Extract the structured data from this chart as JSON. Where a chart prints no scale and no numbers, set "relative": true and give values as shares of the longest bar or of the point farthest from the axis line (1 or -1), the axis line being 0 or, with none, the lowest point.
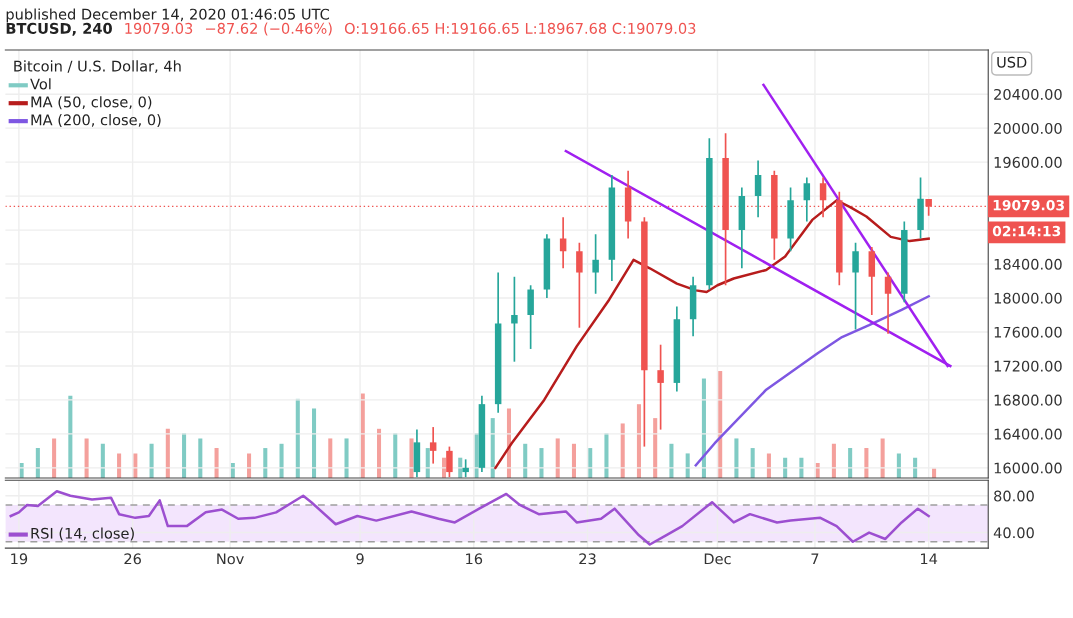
{
  "chart_data": [
    {
      "type": "bar",
      "relative": true,
      "legend": "top left",
      "tick_labels": false,
      "grid": "x",
      "xlim": [
        "2020-10-18T04:00",
        "2020-12-17T16:00"
      ],
      "xticks": [
        "2020-10-19",
        "2020-10-26",
        "2020-11-01",
        "2020-11-09",
        "2020-11-16",
        "2020-11-23",
        "2020-12-01",
        "2020-12-07",
        "2020-12-14"
      ],
      "x": [
        "2020-10-19T04:00",
        "2020-10-20T04:00",
        "2020-10-21T04:00",
        "2020-10-22T04:00",
        "2020-10-23T04:00",
        "2020-10-24T04:00",
        "2020-10-25T04:00",
        "2020-10-26T04:00",
        "2020-10-27T04:00",
        "2020-10-28T04:00",
        "2020-10-29T04:00",
        "2020-10-30T04:00",
        "2020-10-31T04:00",
        "2020-11-01T04:00",
        "2020-11-02T04:00",
        "2020-11-03T04:00",
        "2020-11-04T04:00",
        "2020-11-05T04:00",
        "2020-11-06T04:00",
        "2020-11-07T04:00",
        "2020-11-08T04:00",
        "2020-11-09T04:00",
        "2020-11-10T04:00",
        "2020-11-11T04:00",
        "2020-11-12T04:00",
        "2020-11-13T04:00",
        "2020-11-14T04:00",
        "2020-11-15T04:00",
        "2020-11-16T04:00",
        "2020-11-17T04:00",
        "2020-11-18T04:00",
        "2020-11-19T04:00",
        "2020-11-20T04:00",
        "2020-11-21T04:00",
        "2020-11-22T04:00",
        "2020-11-23T04:00",
        "2020-11-24T04:00",
        "2020-11-25T04:00",
        "2020-11-26T04:00",
        "2020-11-27T04:00",
        "2020-11-28T04:00",
        "2020-11-29T04:00",
        "2020-11-30T04:00",
        "2020-12-01T04:00",
        "2020-12-02T04:00",
        "2020-12-03T04:00",
        "2020-12-04T04:00",
        "2020-12-05T04:00",
        "2020-12-06T04:00",
        "2020-12-07T04:00",
        "2020-12-08T04:00",
        "2020-12-09T04:00",
        "2020-12-10T04:00",
        "2020-12-11T04:00",
        "2020-12-12T04:00",
        "2020-12-13T04:00",
        "2020-12-14T08:00"
      ],
      "series": [
        {
          "name": "Vol",
          "color": "#80cbc4",
          "values": [
            0.14,
            0.28,
            0.37,
            0.77,
            0.37,
            0.32,
            0.23,
            0.23,
            0.32,
            0.46,
            0.42,
            0.37,
            0.28,
            0.14,
            0.23,
            0.28,
            0.32,
            0.74,
            0.65,
            0.37,
            0.37,
            0.79,
            0.46,
            0.42,
            0.37,
            0.28,
            0.19,
            0.19,
            0.42,
            0.56,
            0.65,
            0.32,
            0.28,
            0.37,
            0.32,
            0.28,
            0.42,
            0.51,
            0.69,
            0.56,
            0.32,
            0.23,
            0.93,
            1,
            0.37,
            0.28,
            0.23,
            0.19,
            0.19,
            0.14,
            0.32,
            0.28,
            0.28,
            0.37,
            0.23,
            0.19,
            0.09
          ],
          "colors": [
            "#80cbc4",
            "#80cbc4",
            "#f4a09c",
            "#80cbc4",
            "#f4a09c",
            "#80cbc4",
            "#f4a09c",
            "#f4a09c",
            "#80cbc4",
            "#f4a09c",
            "#80cbc4",
            "#80cbc4",
            "#f4a09c",
            "#80cbc4",
            "#f4a09c",
            "#80cbc4",
            "#80cbc4",
            "#80cbc4",
            "#80cbc4",
            "#f4a09c",
            "#80cbc4",
            "#f4a09c",
            "#f4a09c",
            "#80cbc4",
            "#f4a09c",
            "#80cbc4",
            "#f4a09c",
            "#80cbc4",
            "#80cbc4",
            "#80cbc4",
            "#f4a09c",
            "#80cbc4",
            "#80cbc4",
            "#f4a09c",
            "#f4a09c",
            "#80cbc4",
            "#80cbc4",
            "#f4a09c",
            "#f4a09c",
            "#f4a09c",
            "#80cbc4",
            "#80cbc4",
            "#80cbc4",
            "#f4a09c",
            "#80cbc4",
            "#80cbc4",
            "#f4a09c",
            "#80cbc4",
            "#80cbc4",
            "#f4a09c",
            "#f4a09c",
            "#80cbc4",
            "#f4a09c",
            "#f4a09c",
            "#80cbc4",
            "#80cbc4",
            "#f4a09c"
          ]
        }
      ]
    },
    {
      "type": "candlestick",
      "title": "Bitcoin / U.S. Dollar, 4h",
      "x": [
        "2020-11-12T12:00",
        "2020-11-13T12:00",
        "2020-11-14T12:00",
        "2020-11-15T12:00",
        "2020-11-16T12:00",
        "2020-11-17T12:00",
        "2020-11-18T12:00",
        "2020-11-19T12:00",
        "2020-11-20T12:00",
        "2020-11-21T12:00",
        "2020-11-22T12:00",
        "2020-11-23T12:00",
        "2020-11-24T12:00",
        "2020-11-25T12:00",
        "2020-11-26T12:00",
        "2020-11-27T12:00",
        "2020-11-28T12:00",
        "2020-11-29T12:00",
        "2020-11-30T12:00",
        "2020-12-01T12:00",
        "2020-12-02T12:00",
        "2020-12-03T12:00",
        "2020-12-04T12:00",
        "2020-12-05T12:00",
        "2020-12-06T12:00",
        "2020-12-07T12:00",
        "2020-12-08T12:00",
        "2020-12-09T12:00",
        "2020-12-10T12:00",
        "2020-12-11T12:00",
        "2020-12-12T12:00",
        "2020-12-13T12:00",
        "2020-12-14T00:00"
      ],
      "ohlc": [
        [
          15950,
          16450,
          15890,
          16300
        ],
        [
          16300,
          16480,
          16050,
          16200
        ],
        [
          16200,
          16250,
          15890,
          15950
        ],
        [
          15950,
          16100,
          15890,
          16000
        ],
        [
          16000,
          16850,
          15950,
          16750
        ],
        [
          16750,
          18300,
          16650,
          17700
        ],
        [
          17700,
          18250,
          17250,
          17800
        ],
        [
          17800,
          18150,
          17400,
          18100
        ],
        [
          18100,
          18750,
          18000,
          18700
        ],
        [
          18700,
          18950,
          18350,
          18550
        ],
        [
          18550,
          18650,
          17650,
          18300
        ],
        [
          18300,
          18750,
          18050,
          18450
        ],
        [
          18450,
          19450,
          18200,
          19300
        ],
        [
          19300,
          19500,
          18700,
          18900
        ],
        [
          18900,
          18950,
          16250,
          17150
        ],
        [
          17150,
          17450,
          16450,
          17000
        ],
        [
          17000,
          17900,
          16900,
          17750
        ],
        [
          17750,
          18250,
          17550,
          18150
        ],
        [
          18150,
          19880,
          18100,
          19650
        ],
        [
          19650,
          19940,
          18150,
          18800
        ],
        [
          18800,
          19300,
          18350,
          19200
        ],
        [
          19200,
          19620,
          18950,
          19450
        ],
        [
          19450,
          19500,
          18450,
          18700
        ],
        [
          18700,
          19300,
          18550,
          19150
        ],
        [
          19150,
          19420,
          18900,
          19350
        ],
        [
          19350,
          19420,
          18950,
          19150
        ],
        [
          19150,
          19250,
          18150,
          18300
        ],
        [
          18300,
          18650,
          17630,
          18550
        ],
        [
          18550,
          18600,
          17800,
          18250
        ],
        [
          18250,
          18300,
          17580,
          18050
        ],
        [
          18050,
          18900,
          17950,
          18800
        ],
        [
          18800,
          19420,
          18700,
          19170
        ],
        [
          19166.65,
          19166.65,
          18967.68,
          19079.03
        ]
      ],
      "colors": [
        "#26a69a",
        "#ef5350",
        "#ef5350",
        "#26a69a",
        "#26a69a",
        "#26a69a",
        "#26a69a",
        "#26a69a",
        "#26a69a",
        "#ef5350",
        "#ef5350",
        "#26a69a",
        "#26a69a",
        "#ef5350",
        "#ef5350",
        "#ef5350",
        "#26a69a",
        "#26a69a",
        "#26a69a",
        "#ef5350",
        "#26a69a",
        "#26a69a",
        "#ef5350",
        "#26a69a",
        "#26a69a",
        "#ef5350",
        "#ef5350",
        "#26a69a",
        "#ef5350",
        "#ef5350",
        "#26a69a",
        "#26a69a",
        "#ef5350"
      ],
      "series": [
        {
          "name": "MA (50, close, 0)",
          "type": "line",
          "color": "#b71c1c",
          "x": [
            "2020-11-17T08:00",
            "2020-11-18T08:00",
            "2020-11-20T08:00",
            "2020-11-22T08:00",
            "2020-11-24T08:00",
            "2020-11-25T20:00",
            "2020-11-26T20:00",
            "2020-11-28T12:00",
            "2020-11-29T16:00",
            "2020-11-30T08:00",
            "2020-12-01T00:00",
            "2020-12-02T00:00",
            "2020-12-04T00:00",
            "2020-12-05T04:00",
            "2020-12-06T20:00",
            "2020-12-08T08:00",
            "2020-12-09T04:00",
            "2020-12-10T04:00",
            "2020-12-11T16:00",
            "2020-12-12T20:00",
            "2020-12-14T00:00"
          ],
          "values": [
            16000,
            16290,
            16800,
            17430,
            17980,
            18450,
            18350,
            18170,
            18090,
            18070,
            18150,
            18230,
            18330,
            18490,
            18920,
            19150,
            19070,
            18960,
            18720,
            18670,
            18700
          ]
        },
        {
          "name": "MA (200, close, 0)",
          "type": "line",
          "color": "#7e57e2",
          "x": [
            "2020-11-29T16:00",
            "2020-11-30T20:00",
            "2020-12-04T00:00",
            "2020-12-07T04:00",
            "2020-12-08T16:00",
            "2020-12-10T08:00",
            "2020-12-12T08:00",
            "2020-12-14T00:00"
          ],
          "values": [
            16030,
            16290,
            16920,
            17350,
            17540,
            17680,
            17860,
            18020
          ]
        },
        {
          "type": "line",
          "color": "#a020f0",
          "x": [
            "2020-11-21T16:00",
            "2020-12-15T08:00"
          ],
          "values": [
            19730,
            17200
          ]
        },
        {
          "type": "line",
          "color": "#a020f0",
          "x": [
            "2020-12-03T20:00",
            "2020-12-15T04:00"
          ],
          "values": [
            20510,
            17200
          ]
        }
      ],
      "xlim": [
        "2020-10-18T04:00",
        "2020-12-17T16:00"
      ],
      "ylim": [
        15880,
        20920
      ],
      "yticks": [
        {
          "value": 16000,
          "label": "16000.00"
        },
        {
          "value": 16400,
          "label": "16400.00"
        },
        {
          "value": 16800,
          "label": "16800.00"
        },
        {
          "value": 17200,
          "label": "17200.00"
        },
        {
          "value": 17600,
          "label": "17600.00"
        },
        {
          "value": 18000,
          "label": "18000.00"
        },
        {
          "value": 18400,
          "label": "18400.00"
        },
        {
          "value": 18800,
          "label": null
        },
        {
          "value": 19200,
          "label": null
        },
        {
          "value": 19600,
          "label": "19600.00"
        },
        {
          "value": 20000,
          "label": "20000.00"
        },
        {
          "value": 20400,
          "label": "20400.00"
        }
      ],
      "xticks": [
        "2020-10-19",
        "2020-10-26",
        "2020-11-01",
        "2020-11-09",
        "2020-11-16",
        "2020-11-23",
        "2020-12-01",
        "2020-12-07",
        "2020-12-14"
      ],
      "tick_labels": "y",
      "grid": "y",
      "legend": "top left",
      "ref_lines": [
        {
          "axis": "y",
          "value": 19079.03,
          "label": "19079.03",
          "color": "#ef5350",
          "line_style": "dotted"
        }
      ],
      "annotations": [
        "published December 14, 2020 01:46:05 UTC",
        "BTCUSD, 240",
        "19079.03",
        "−87.62 (−0.46%)",
        "O:19166.65 H:19166.65 L:18967.68 C:19079.03",
        "USD",
        "02:14:13"
      ]
    },
    {
      "type": "line",
      "xlim": [
        "2020-10-18T04:00",
        "2020-12-17T16:00"
      ],
      "ylim": [
        23,
        97
      ],
      "yticks": [
        {
          "value": 40,
          "label": "40.00"
        },
        {
          "value": 80,
          "label": "80.00"
        }
      ],
      "xticks": [
        {
          "value": "2020-10-19",
          "label": "19"
        },
        {
          "value": "2020-10-26",
          "label": "26"
        },
        {
          "value": "2020-11-01",
          "label": "Nov"
        },
        {
          "value": "2020-11-09",
          "label": "9"
        },
        {
          "value": "2020-11-16",
          "label": "16"
        },
        {
          "value": "2020-11-23",
          "label": "23"
        },
        {
          "value": "2020-12-01",
          "label": "Dec"
        },
        {
          "value": "2020-12-07",
          "label": "7"
        },
        {
          "value": "2020-12-14",
          "label": "14"
        }
      ],
      "grid": true,
      "legend": "bottom left",
      "bands": [
        {
          "axis": "y",
          "from": 30,
          "to": 70,
          "color": "#f3e5fd"
        }
      ],
      "ref_lines": [
        {
          "axis": "y",
          "value": 30,
          "color": "#9e9e9e",
          "line_style": "dashed"
        },
        {
          "axis": "y",
          "value": 70,
          "color": "#9e9e9e",
          "line_style": "dashed"
        }
      ],
      "series": [
        {
          "name": "RSI (14, close)",
          "color": "#9c4fd0",
          "x": [
            "2020-10-18T12:00",
            "2020-10-19T00:00",
            "2020-10-19T12:00",
            "2020-10-20T04:00",
            "2020-10-21T08:00",
            "2020-10-22T04:00",
            "2020-10-23T12:00",
            "2020-10-24T16:00",
            "2020-10-25T04:00",
            "2020-10-26T04:00",
            "2020-10-27T00:00",
            "2020-10-27T16:00",
            "2020-10-28T04:00",
            "2020-10-29T08:00",
            "2020-10-30T12:00",
            "2020-10-31T12:00",
            "2020-11-01T12:00",
            "2020-11-02T12:00",
            "2020-11-03T20:00",
            "2020-11-05T12:00",
            "2020-11-06T00:00",
            "2020-11-07T12:00",
            "2020-11-08T20:00",
            "2020-11-10T00:00",
            "2020-11-12T04:00",
            "2020-11-13T20:00",
            "2020-11-14T20:00",
            "2020-11-16T08:00",
            "2020-11-18T00:00",
            "2020-11-18T20:00",
            "2020-11-20T00:00",
            "2020-11-21T16:00",
            "2020-11-22T08:00",
            "2020-11-23T20:00",
            "2020-11-24T16:00",
            "2020-11-26T04:00",
            "2020-11-26T20:00",
            "2020-11-27T20:00",
            "2020-11-28T20:00",
            "2020-11-30T16:00",
            "2020-12-02T00:00",
            "2020-12-03T00:00",
            "2020-12-04T16:00",
            "2020-12-05T12:00",
            "2020-12-07T08:00",
            "2020-12-08T08:00",
            "2020-12-09T08:00",
            "2020-12-10T08:00",
            "2020-12-11T08:00",
            "2020-12-12T08:00",
            "2020-12-13T08:00",
            "2020-12-14T00:00"
          ],
          "values": [
            58,
            62,
            70,
            69,
            85,
            80,
            76,
            78,
            60,
            56,
            58,
            75,
            47,
            47,
            62,
            65,
            55,
            56,
            62,
            80,
            73,
            49,
            58,
            53,
            63,
            55,
            51,
            66,
            82,
            70,
            60,
            63,
            51,
            55,
            66,
            37,
            27,
            37,
            47,
            73,
            51,
            60,
            51,
            53,
            56,
            47,
            30,
            40,
            33,
            51,
            66,
            58
          ]
        }
      ]
    }
  ]
}
